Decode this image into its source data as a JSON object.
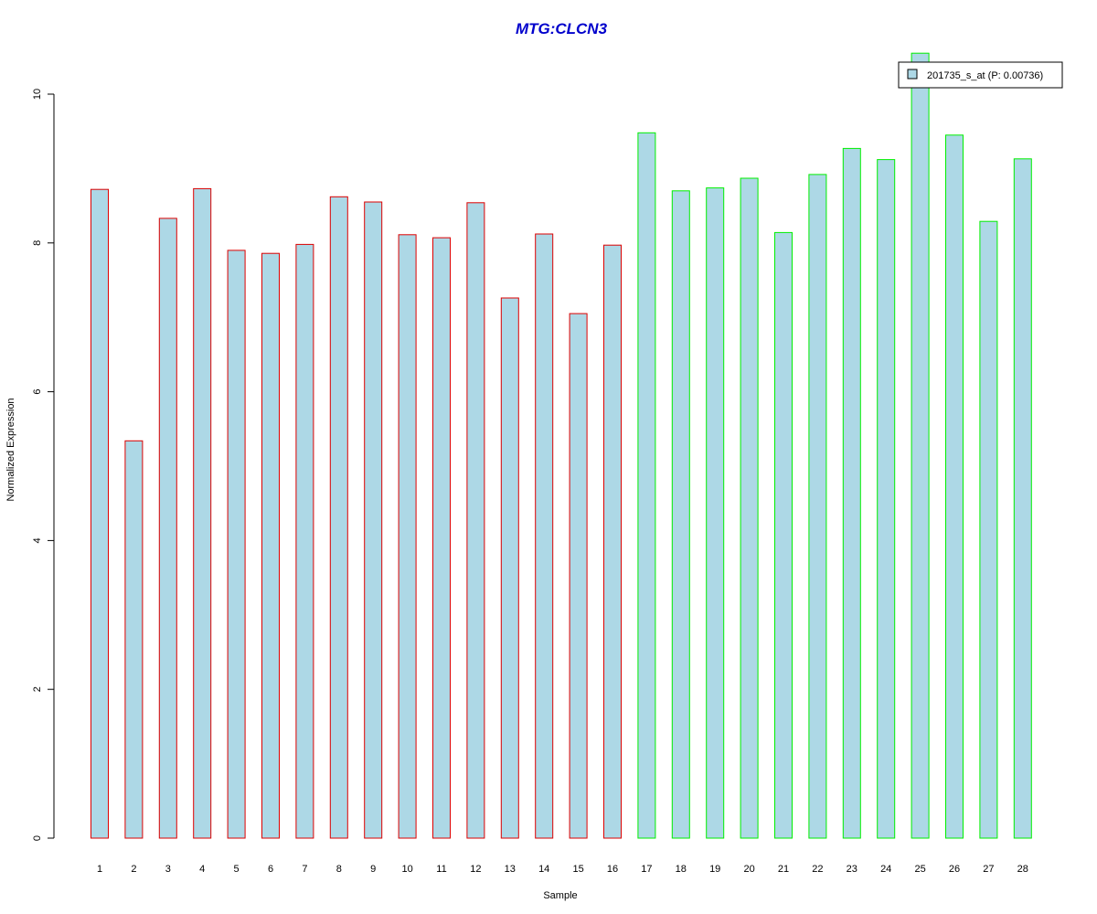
{
  "chart_data": {
    "type": "bar",
    "title": "MTG:CLCN3",
    "xlabel": "Sample",
    "ylabel": "Normalized Expression",
    "categories": [
      "1",
      "2",
      "3",
      "4",
      "5",
      "6",
      "7",
      "8",
      "9",
      "10",
      "11",
      "12",
      "13",
      "14",
      "15",
      "16",
      "17",
      "18",
      "19",
      "20",
      "21",
      "22",
      "23",
      "24",
      "25",
      "26",
      "27",
      "28"
    ],
    "series": [
      {
        "name": "201735_s_at (P: 0.00736)",
        "values": [
          8.72,
          5.34,
          8.33,
          8.73,
          7.9,
          7.86,
          7.98,
          8.62,
          8.55,
          8.11,
          8.07,
          8.54,
          7.26,
          8.12,
          7.05,
          7.97,
          9.48,
          8.7,
          8.74,
          8.87,
          8.14,
          8.92,
          9.27,
          9.12,
          10.55,
          9.45,
          8.29,
          9.13
        ]
      }
    ],
    "groups": [
      {
        "samples": [
          1,
          16
        ],
        "border_color": "#dd0000"
      },
      {
        "samples": [
          17,
          28
        ],
        "border_color": "#00ee00"
      }
    ],
    "yticks": [
      0,
      2,
      4,
      6,
      8,
      10
    ],
    "ylim": [
      0,
      10.55
    ],
    "bar_fill": "#add8e6",
    "title_color": "#0000cc",
    "legend_position": "top-right",
    "grid": false
  }
}
